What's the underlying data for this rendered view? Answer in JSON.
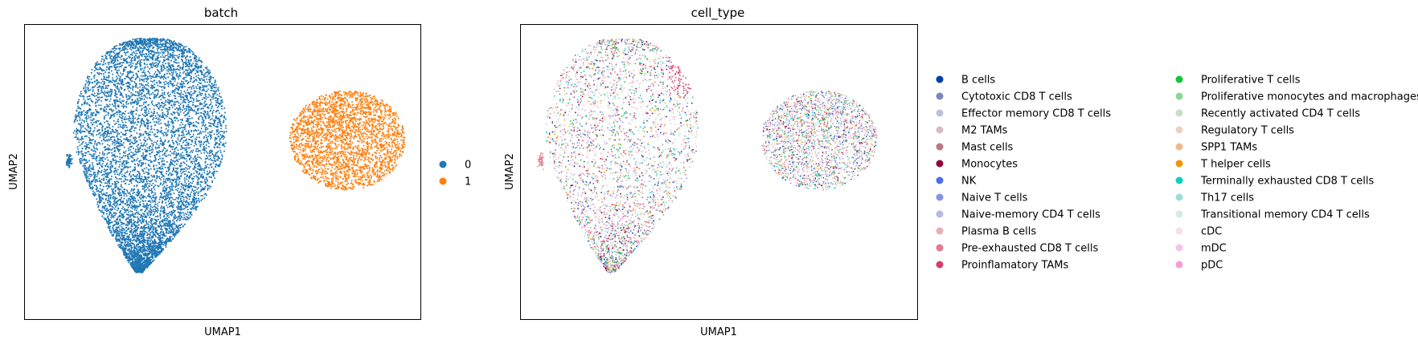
{
  "chart_data": [
    {
      "type": "scatter",
      "title": "batch",
      "xlabel": "UMAP1",
      "ylabel": "UMAP2",
      "grid": false,
      "legend_placement": "right",
      "legend": [
        {
          "label": "0",
          "color": "#1f77b4"
        },
        {
          "label": "1",
          "color": "#ff7f0e"
        }
      ],
      "clusters": [
        {
          "name": "0",
          "color": "#1f77b4",
          "shape": "large-left-blob"
        },
        {
          "name": "1",
          "color": "#ff7f0e",
          "shape": "small-right-blob"
        }
      ]
    },
    {
      "type": "scatter",
      "title": "cell_type",
      "xlabel": "UMAP1",
      "ylabel": "UMAP2",
      "grid": false,
      "legend_placement": "right",
      "legend": [
        {
          "label": "B cells",
          "color": "#023fa5"
        },
        {
          "label": "Cytotoxic CD8 T cells",
          "color": "#7d87b9"
        },
        {
          "label": "Effector memory CD8 T cells",
          "color": "#bec1d4"
        },
        {
          "label": "M2 TAMs",
          "color": "#d6bcc0"
        },
        {
          "label": "Mast cells",
          "color": "#bb7784"
        },
        {
          "label": "Monocytes",
          "color": "#8e063b"
        },
        {
          "label": "NK",
          "color": "#4a6fe3"
        },
        {
          "label": "Naive T cells",
          "color": "#8595e1"
        },
        {
          "label": "Naive-memory CD4 T cells",
          "color": "#b5bbe3"
        },
        {
          "label": "Plasma B cells",
          "color": "#e6afb9"
        },
        {
          "label": "Pre-exhausted CD8 T cells",
          "color": "#e07b91"
        },
        {
          "label": "Proinflamatory TAMs",
          "color": "#d33f6a"
        },
        {
          "label": "Proliferative T cells",
          "color": "#11c638"
        },
        {
          "label": "Proliferative monocytes and macrophages",
          "color": "#8dd593"
        },
        {
          "label": "Recently activated CD4 T cells",
          "color": "#c6dec7"
        },
        {
          "label": "Regulatory T cells",
          "color": "#ead3c6"
        },
        {
          "label": "SPP1 TAMs",
          "color": "#f0b98d"
        },
        {
          "label": "T helper cells",
          "color": "#ef9708"
        },
        {
          "label": "Terminally exhausted CD8 T cells",
          "color": "#0fcfc0"
        },
        {
          "label": "Th17 cells",
          "color": "#9cded6"
        },
        {
          "label": "Transitional memory CD4 T cells",
          "color": "#d5eae7"
        },
        {
          "label": "cDC",
          "color": "#f3e1eb"
        },
        {
          "label": "mDC",
          "color": "#f6c4e1"
        },
        {
          "label": "pDC",
          "color": "#f79cd4"
        }
      ]
    }
  ]
}
